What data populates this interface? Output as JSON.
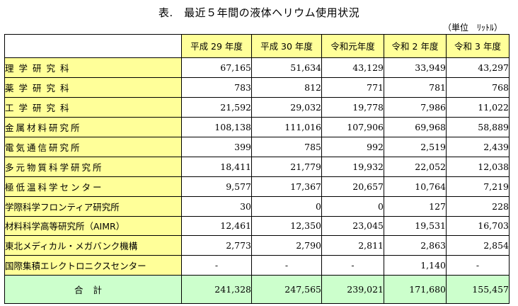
{
  "title": "表.　最近５年間の液体ヘリウム使用状況",
  "unit": "（単位　ﾘｯﾄﾙ）",
  "headers": [
    "平成 29 年度",
    "平成 30 年度",
    "令和元年度",
    "令和 2 年度",
    "令和 3 年度"
  ],
  "rows": [
    {
      "name": "理学研究科",
      "values": [
        "67,165",
        "51,634",
        "43,129",
        "33,949",
        "43,297"
      ]
    },
    {
      "name": "薬学研究科",
      "values": [
        "783",
        "812",
        "771",
        "781",
        "768"
      ]
    },
    {
      "name": "工学研究科",
      "values": [
        "21,592",
        "29,032",
        "19,778",
        "7,986",
        "11,022"
      ]
    },
    {
      "name": "金属材料研究所",
      "values": [
        "108,138",
        "111,016",
        "107,906",
        "69,968",
        "58,889"
      ]
    },
    {
      "name": "電気通信研究所",
      "values": [
        "399",
        "785",
        "992",
        "2,519",
        "2,439"
      ]
    },
    {
      "name": "多元物質科学研究所",
      "values": [
        "18,411",
        "21,779",
        "19,932",
        "22,052",
        "12,038"
      ]
    },
    {
      "name": "極低温科学センター",
      "values": [
        "9,577",
        "17,367",
        "20,657",
        "10,764",
        "7,219"
      ]
    },
    {
      "name": "学際科学フロンティア研究所",
      "values": [
        "30",
        "0",
        "0",
        "127",
        "228"
      ]
    },
    {
      "name": "材料科学高等研究所（AIMR）",
      "values": [
        "12,461",
        "12,350",
        "23,045",
        "19,531",
        "16,703"
      ]
    },
    {
      "name": "東北メディカル・メガバンク機構",
      "values": [
        "2,773",
        "2,790",
        "2,811",
        "2,863",
        "2,854"
      ]
    },
    {
      "name": "国際集積エレクトロニクスセンター",
      "values": [
        "-",
        "-",
        "-",
        "1,140",
        "-"
      ]
    }
  ],
  "total": {
    "name": "合計",
    "values": [
      "241,328",
      "247,565",
      "239,021",
      "171,680",
      "155,457"
    ]
  }
}
